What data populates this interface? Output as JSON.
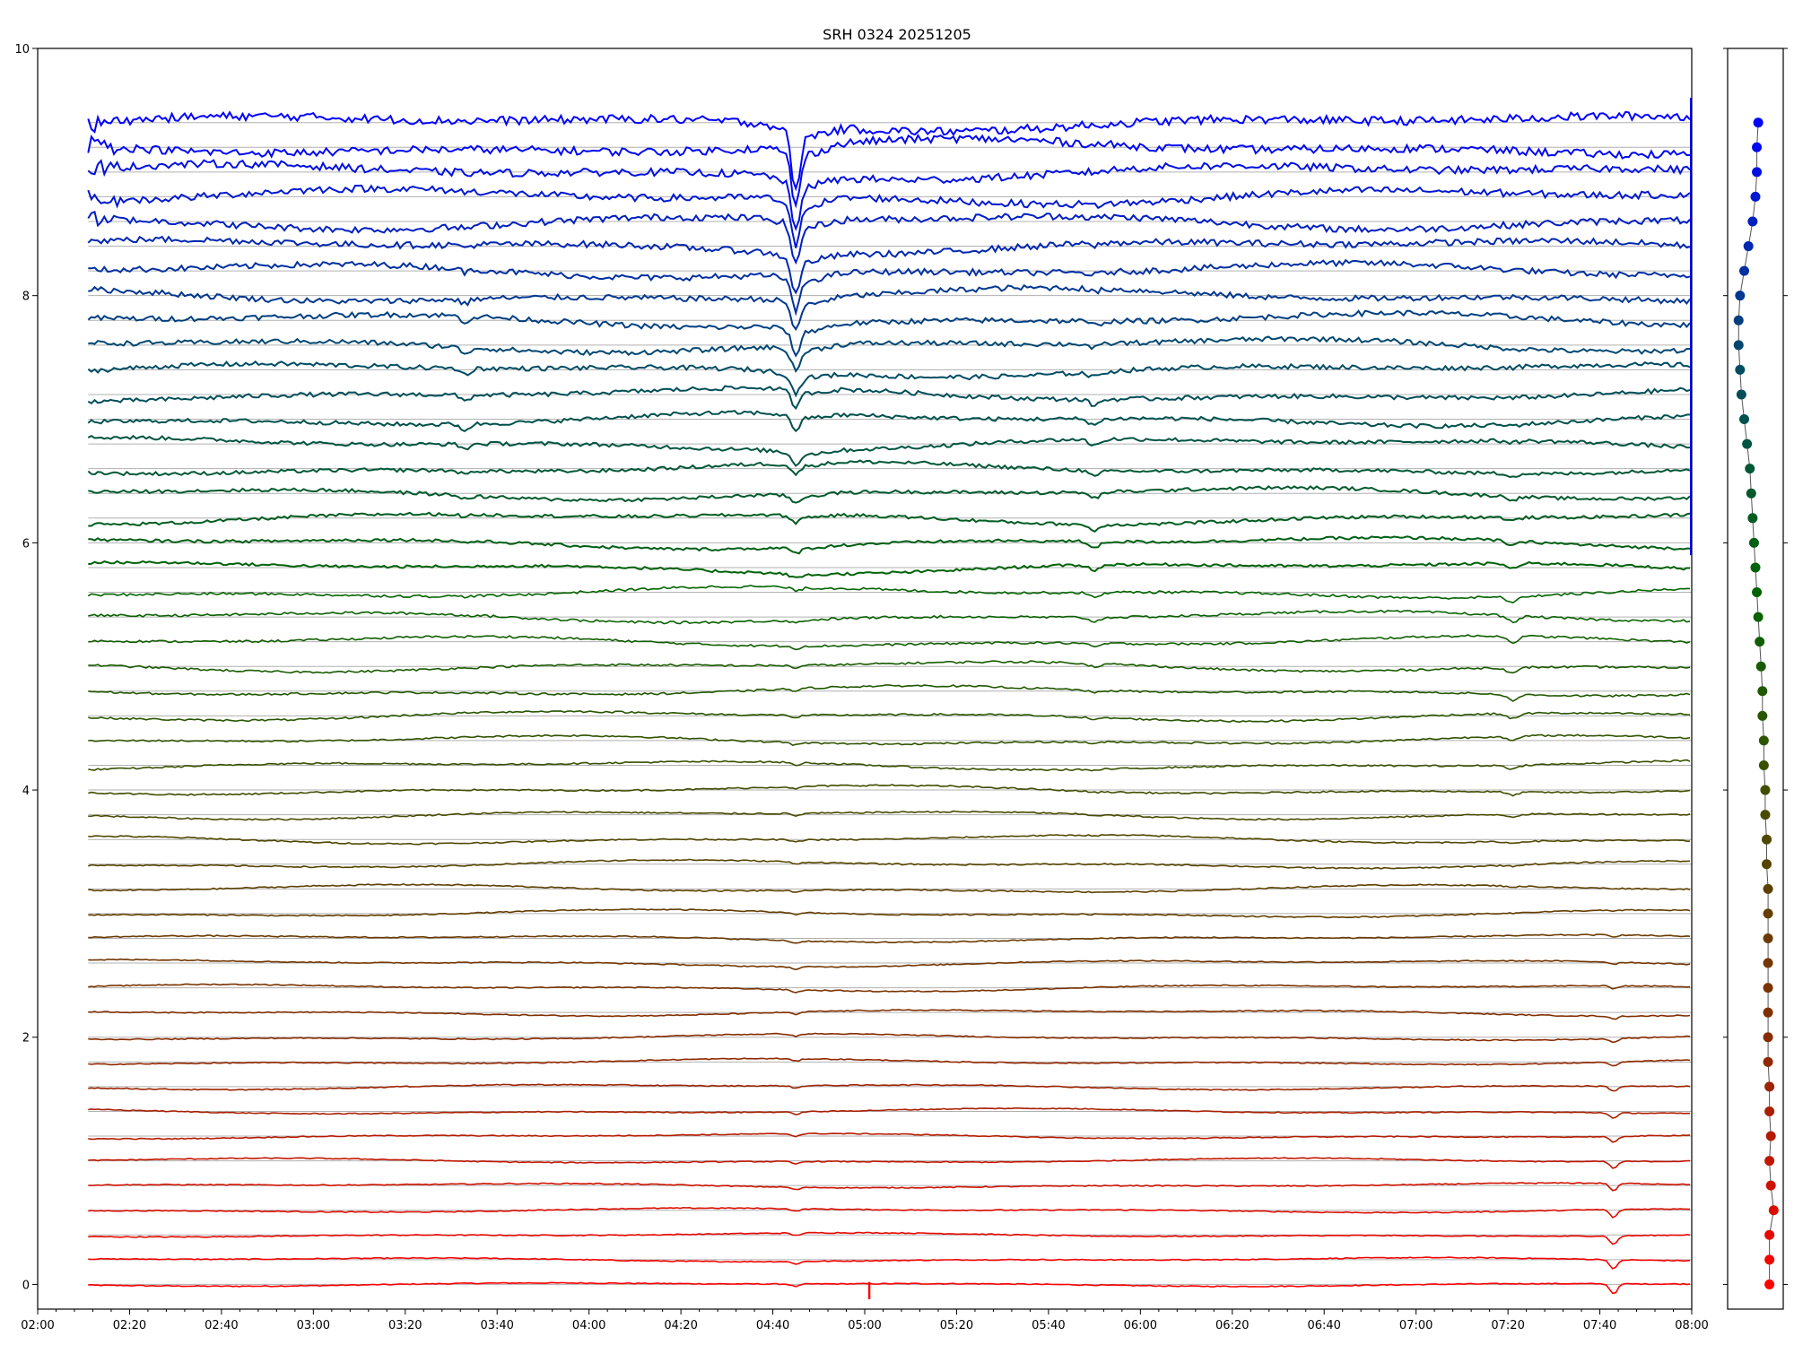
{
  "chart_data": [
    {
      "type": "line",
      "title": "SRH 0324 20251205",
      "xlabel": "",
      "ylabel": "",
      "x_ticks": [
        "02:00",
        "02:20",
        "02:40",
        "03:00",
        "03:20",
        "03:40",
        "04:00",
        "04:20",
        "04:40",
        "05:00",
        "05:20",
        "05:40",
        "06:00",
        "06:20",
        "06:40",
        "07:00",
        "07:20",
        "07:40",
        "08:00"
      ],
      "x_tick_minutes": [
        0,
        20,
        40,
        60,
        80,
        100,
        120,
        140,
        160,
        180,
        200,
        220,
        240,
        260,
        280,
        300,
        320,
        340,
        360
      ],
      "xlim_minutes": [
        0,
        360
      ],
      "data_start_minute": 11,
      "data_end_minute": 360,
      "y_ticks": [
        "0",
        "2",
        "4",
        "6",
        "8",
        "10"
      ],
      "y_tick_values": [
        0,
        2,
        4,
        6,
        8,
        10
      ],
      "ylim": [
        -0.2,
        10
      ],
      "series_count": 48,
      "series_spacing": 0.2,
      "series_baselines": "0.0, 0.2, 0.4 ... 9.4",
      "color_gradient": [
        "#ff0000",
        "#8b2a00",
        "#4a4a00",
        "#006400",
        "#004a6a",
        "#0000ff"
      ],
      "grid": "horizontal reference line at each series baseline",
      "events": [
        {
          "time": "04:45",
          "minute": 165,
          "note": "strong dip on upper traces"
        },
        {
          "time": "05:01",
          "minute": 181,
          "note": "spike on lowest trace"
        },
        {
          "time": "05:50",
          "minute": 230,
          "note": "dip on middle traces"
        },
        {
          "time": "07:21",
          "minute": 321,
          "note": "dip on middle traces"
        },
        {
          "time": "07:43",
          "minute": 343,
          "note": "dip on lower traces"
        }
      ]
    },
    {
      "type": "scatter",
      "title": "",
      "points_y": [
        0.0,
        0.2,
        0.4,
        0.6,
        0.8,
        1.0,
        1.2,
        1.4,
        1.6,
        1.8,
        2.0,
        2.2,
        2.4,
        2.6,
        2.8,
        3.0,
        3.2,
        3.4,
        3.6,
        3.8,
        4.0,
        4.2,
        4.4,
        4.6,
        4.8,
        5.0,
        5.2,
        5.4,
        5.6,
        5.8,
        6.0,
        6.2,
        6.4,
        6.6,
        6.8,
        7.0,
        7.2,
        7.4,
        7.6,
        7.8,
        8.0,
        8.2,
        8.4,
        8.6,
        8.8,
        9.0,
        9.2,
        9.4
      ],
      "points_x": [
        0.6,
        0.6,
        0.6,
        0.9,
        0.7,
        0.6,
        0.7,
        0.6,
        0.6,
        0.5,
        0.5,
        0.5,
        0.5,
        0.5,
        0.5,
        0.5,
        0.5,
        0.4,
        0.4,
        0.3,
        0.3,
        0.2,
        0.2,
        0.1,
        0.1,
        0.0,
        -0.1,
        -0.2,
        -0.3,
        -0.4,
        -0.5,
        -0.6,
        -0.7,
        -0.8,
        -1.0,
        -1.2,
        -1.4,
        -1.5,
        -1.6,
        -1.6,
        -1.5,
        -1.2,
        -0.9,
        -0.6,
        -0.4,
        -0.3,
        -0.3,
        -0.2
      ],
      "connected": true,
      "ylim": [
        -0.2,
        10
      ]
    }
  ]
}
